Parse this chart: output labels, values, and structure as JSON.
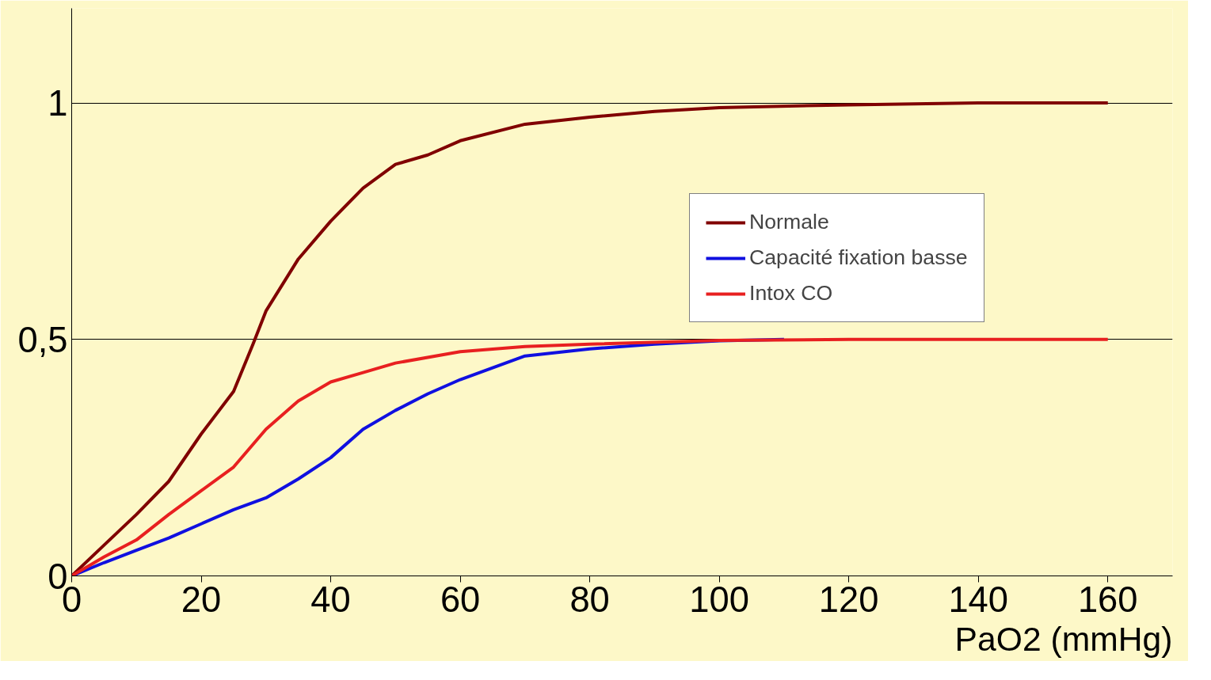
{
  "chart_data": {
    "type": "line",
    "xlabel": "PaO2 (mmHg)",
    "xlim": [
      0,
      170
    ],
    "ylim": [
      0,
      1.2
    ],
    "xticks": [
      0,
      20,
      40,
      60,
      80,
      100,
      120,
      140,
      160
    ],
    "yticks": [
      0,
      {
        "value": 0.5,
        "label": "0,5"
      },
      1
    ],
    "grid": "y",
    "legend": "top right",
    "marker": "none",
    "line_style": "solid",
    "series": [
      {
        "name": "Normale",
        "color": "#800000",
        "x": [
          0,
          5,
          10,
          15,
          20,
          25,
          28,
          30,
          35,
          40,
          45,
          50,
          55,
          60,
          70,
          80,
          90,
          100,
          120,
          140,
          160
        ],
        "values": [
          0,
          0.065,
          0.13,
          0.2,
          0.3,
          0.39,
          0.49,
          0.56,
          0.67,
          0.75,
          0.82,
          0.87,
          0.89,
          0.92,
          0.955,
          0.97,
          0.982,
          0.99,
          0.996,
          1,
          1
        ]
      },
      {
        "name": "Capacité fixation basse",
        "color": "#1010e0",
        "x": [
          0,
          5,
          10,
          15,
          20,
          25,
          30,
          35,
          40,
          45,
          50,
          55,
          60,
          70,
          80,
          90,
          100,
          110
        ],
        "values": [
          0,
          0.028,
          0.054,
          0.08,
          0.11,
          0.14,
          0.165,
          0.205,
          0.25,
          0.31,
          0.35,
          0.385,
          0.415,
          0.465,
          0.48,
          0.49,
          0.497,
          0.5
        ]
      },
      {
        "name": "Intox CO",
        "color": "#e82020",
        "x": [
          0,
          5,
          10,
          15,
          20,
          25,
          30,
          35,
          40,
          45,
          50,
          60,
          70,
          80,
          100,
          120,
          140,
          160
        ],
        "values": [
          0,
          0.04,
          0.076,
          0.13,
          0.18,
          0.23,
          0.31,
          0.37,
          0.41,
          0.43,
          0.45,
          0.474,
          0.485,
          0.49,
          0.498,
          0.5,
          0.5,
          0.5
        ]
      }
    ]
  }
}
